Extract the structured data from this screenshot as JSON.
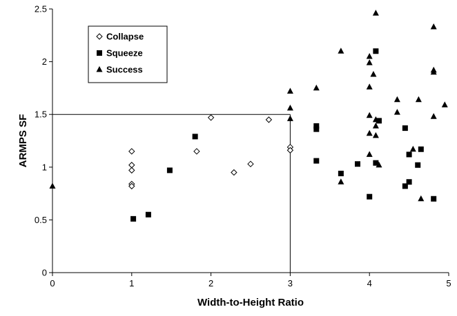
{
  "chart_data": {
    "type": "scatter",
    "xlabel": "Width-to-Height Ratio",
    "ylabel": "ARMPS SF",
    "xlim": [
      0,
      5
    ],
    "ylim": [
      0,
      2.5
    ],
    "x_ticks": [
      "0",
      "1",
      "2",
      "3",
      "4",
      "5"
    ],
    "y_ticks": [
      "0",
      "0.5",
      "1",
      "1.5",
      "2",
      "2.5"
    ],
    "grid": false,
    "legend_position": "top-left",
    "reference_lines": [
      {
        "from": [
          0,
          1.5
        ],
        "to": [
          3,
          1.5
        ]
      },
      {
        "from": [
          3,
          1.5
        ],
        "to": [
          3,
          0
        ]
      }
    ],
    "series": [
      {
        "name": "Collapse",
        "marker": "diamond-open",
        "points": [
          [
            1.0,
            1.15
          ],
          [
            1.0,
            1.02
          ],
          [
            1.0,
            0.97
          ],
          [
            1.0,
            0.84
          ],
          [
            1.0,
            0.82
          ],
          [
            1.82,
            1.15
          ],
          [
            2.0,
            1.47
          ],
          [
            2.29,
            0.95
          ],
          [
            2.5,
            1.03
          ],
          [
            2.73,
            1.45
          ],
          [
            3.0,
            1.19
          ],
          [
            3.0,
            1.16
          ]
        ]
      },
      {
        "name": "Squeeze",
        "marker": "square-filled",
        "points": [
          [
            1.02,
            0.51
          ],
          [
            1.21,
            0.55
          ],
          [
            1.48,
            0.97
          ],
          [
            1.8,
            1.29
          ],
          [
            3.33,
            1.39
          ],
          [
            3.33,
            1.36
          ],
          [
            3.33,
            1.06
          ],
          [
            3.64,
            0.94
          ],
          [
            3.85,
            1.03
          ],
          [
            4.0,
            0.72
          ],
          [
            4.08,
            2.1
          ],
          [
            4.08,
            1.04
          ],
          [
            4.12,
            1.44
          ],
          [
            4.45,
            1.37
          ],
          [
            4.45,
            0.82
          ],
          [
            4.5,
            1.12
          ],
          [
            4.5,
            0.86
          ],
          [
            4.61,
            1.02
          ],
          [
            4.65,
            1.17
          ],
          [
            4.81,
            0.7
          ]
        ]
      },
      {
        "name": "Success",
        "marker": "triangle-filled",
        "points": [
          [
            0.0,
            0.82
          ],
          [
            3.0,
            1.72
          ],
          [
            3.0,
            1.56
          ],
          [
            3.0,
            1.46
          ],
          [
            3.33,
            1.75
          ],
          [
            3.64,
            2.1
          ],
          [
            3.64,
            0.86
          ],
          [
            4.0,
            2.05
          ],
          [
            4.0,
            1.99
          ],
          [
            4.0,
            1.76
          ],
          [
            4.0,
            1.49
          ],
          [
            4.0,
            1.32
          ],
          [
            4.0,
            1.12
          ],
          [
            4.05,
            1.88
          ],
          [
            4.08,
            2.46
          ],
          [
            4.08,
            1.45
          ],
          [
            4.08,
            1.39
          ],
          [
            4.08,
            1.3
          ],
          [
            4.12,
            1.02
          ],
          [
            4.35,
            1.64
          ],
          [
            4.35,
            1.52
          ],
          [
            4.55,
            1.17
          ],
          [
            4.62,
            1.64
          ],
          [
            4.65,
            0.7
          ],
          [
            4.81,
            2.33
          ],
          [
            4.81,
            1.92
          ],
          [
            4.81,
            1.9
          ],
          [
            4.81,
            1.48
          ],
          [
            4.95,
            1.59
          ]
        ]
      }
    ]
  }
}
